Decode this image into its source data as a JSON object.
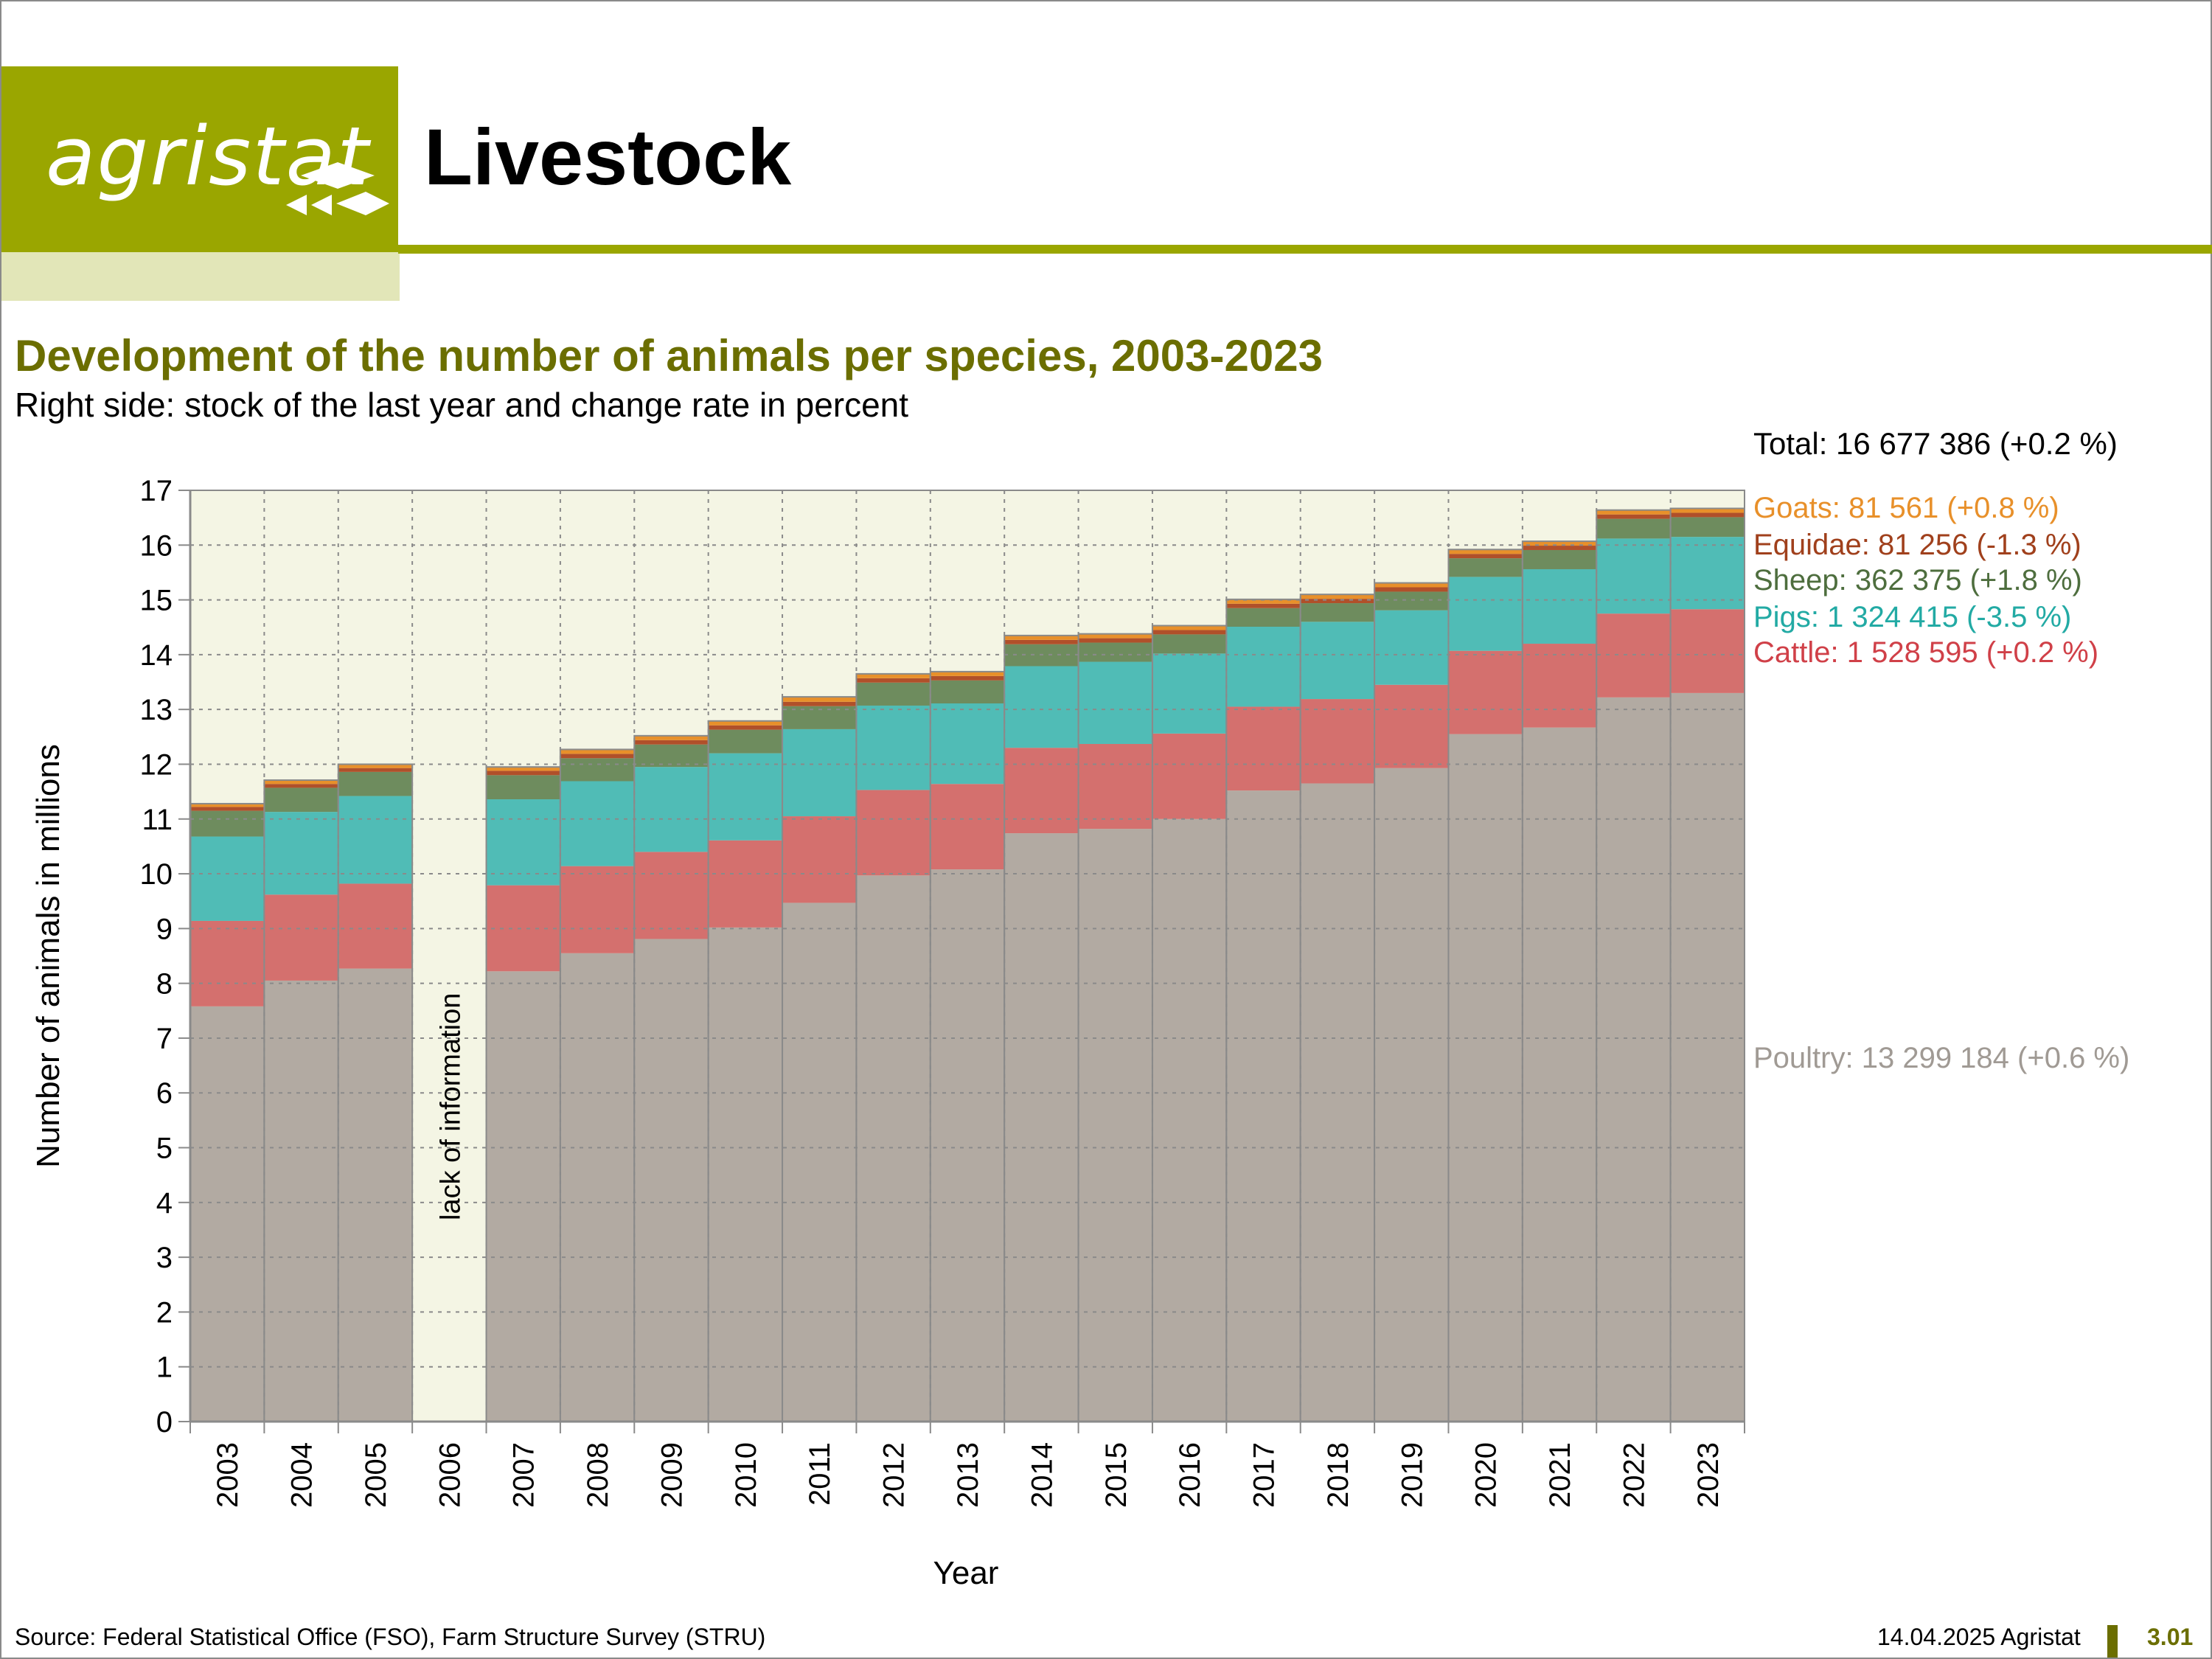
{
  "logo": {
    "text": "agristat"
  },
  "header": {
    "title": "Livestock"
  },
  "chart_title": "Development of the number of animals per species, 2003-2023",
  "chart_subtitle": "Right side: stock of the last year and change rate in percent",
  "footer": {
    "source": "Source: Federal Statistical Office (FSO), Farm Structure Survey (STRU)",
    "date": "14.04.2025 Agristat",
    "page": "3.01"
  },
  "colors": {
    "poultry": "#b2aaa2",
    "cattle": "#d4706e",
    "pigs": "#50bcb6",
    "sheep": "#6e8c5e",
    "equidae": "#b0502a",
    "goats": "#e8902a",
    "plot_bg": "#f4f5e4",
    "grid": "#8a8a8a"
  },
  "chart_data": {
    "type": "bar",
    "stacked": true,
    "xlabel": "Year",
    "ylabel": "Number of animals in millions",
    "ylim": [
      0,
      17
    ],
    "yticks": [
      0,
      1,
      2,
      3,
      4,
      5,
      6,
      7,
      8,
      9,
      10,
      11,
      12,
      13,
      14,
      15,
      16,
      17
    ],
    "grid": true,
    "categories": [
      "2003",
      "2004",
      "2005",
      "2006",
      "2007",
      "2008",
      "2009",
      "2010",
      "2011",
      "2012",
      "2013",
      "2014",
      "2015",
      "2016",
      "2017",
      "2018",
      "2019",
      "2020",
      "2021",
      "2022",
      "2023"
    ],
    "missing_categories": [
      "2006"
    ],
    "missing_label": "lack of information",
    "total_label": "Total: 16 677 386 (+0.2 %)",
    "series": [
      {
        "name": "Poultry",
        "key": "poultry",
        "label": "Poultry: 13 299 184 (+0.6 %)",
        "values": [
          7.58,
          8.05,
          8.27,
          null,
          8.22,
          8.55,
          8.81,
          9.02,
          9.47,
          9.97,
          10.08,
          10.74,
          10.82,
          11.0,
          11.52,
          11.65,
          11.93,
          12.55,
          12.67,
          13.22,
          13.3
        ]
      },
      {
        "name": "Cattle",
        "key": "cattle",
        "label": "Cattle: 1 528 595 (+0.2 %)",
        "values": [
          1.56,
          1.57,
          1.55,
          null,
          1.57,
          1.59,
          1.59,
          1.59,
          1.58,
          1.56,
          1.56,
          1.56,
          1.55,
          1.56,
          1.53,
          1.54,
          1.52,
          1.52,
          1.53,
          1.53,
          1.53
        ]
      },
      {
        "name": "Pigs",
        "key": "pigs",
        "label": "Pigs: 1 324 415 (-3.5 %)",
        "values": [
          1.54,
          1.51,
          1.6,
          null,
          1.57,
          1.55,
          1.55,
          1.59,
          1.59,
          1.54,
          1.47,
          1.49,
          1.5,
          1.46,
          1.46,
          1.41,
          1.36,
          1.35,
          1.36,
          1.37,
          1.32
        ]
      },
      {
        "name": "Sheep",
        "key": "sheep",
        "label": "Sheep: 362 375 (+1.8 %)",
        "values": [
          0.47,
          0.44,
          0.44,
          null,
          0.44,
          0.42,
          0.41,
          0.43,
          0.42,
          0.42,
          0.42,
          0.4,
          0.35,
          0.35,
          0.34,
          0.34,
          0.34,
          0.34,
          0.35,
          0.36,
          0.36
        ]
      },
      {
        "name": "Equidae",
        "key": "equidae",
        "label": "Equidae: 81 256 (-1.3 %)",
        "values": [
          0.07,
          0.07,
          0.07,
          null,
          0.08,
          0.08,
          0.08,
          0.08,
          0.08,
          0.08,
          0.08,
          0.08,
          0.08,
          0.08,
          0.08,
          0.08,
          0.08,
          0.08,
          0.08,
          0.08,
          0.08
        ]
      },
      {
        "name": "Goats",
        "key": "goats",
        "label": "Goats: 81 561 (+0.8 %)",
        "values": [
          0.06,
          0.07,
          0.07,
          null,
          0.07,
          0.08,
          0.08,
          0.08,
          0.09,
          0.08,
          0.08,
          0.08,
          0.08,
          0.08,
          0.08,
          0.08,
          0.08,
          0.08,
          0.08,
          0.08,
          0.08
        ]
      }
    ]
  }
}
